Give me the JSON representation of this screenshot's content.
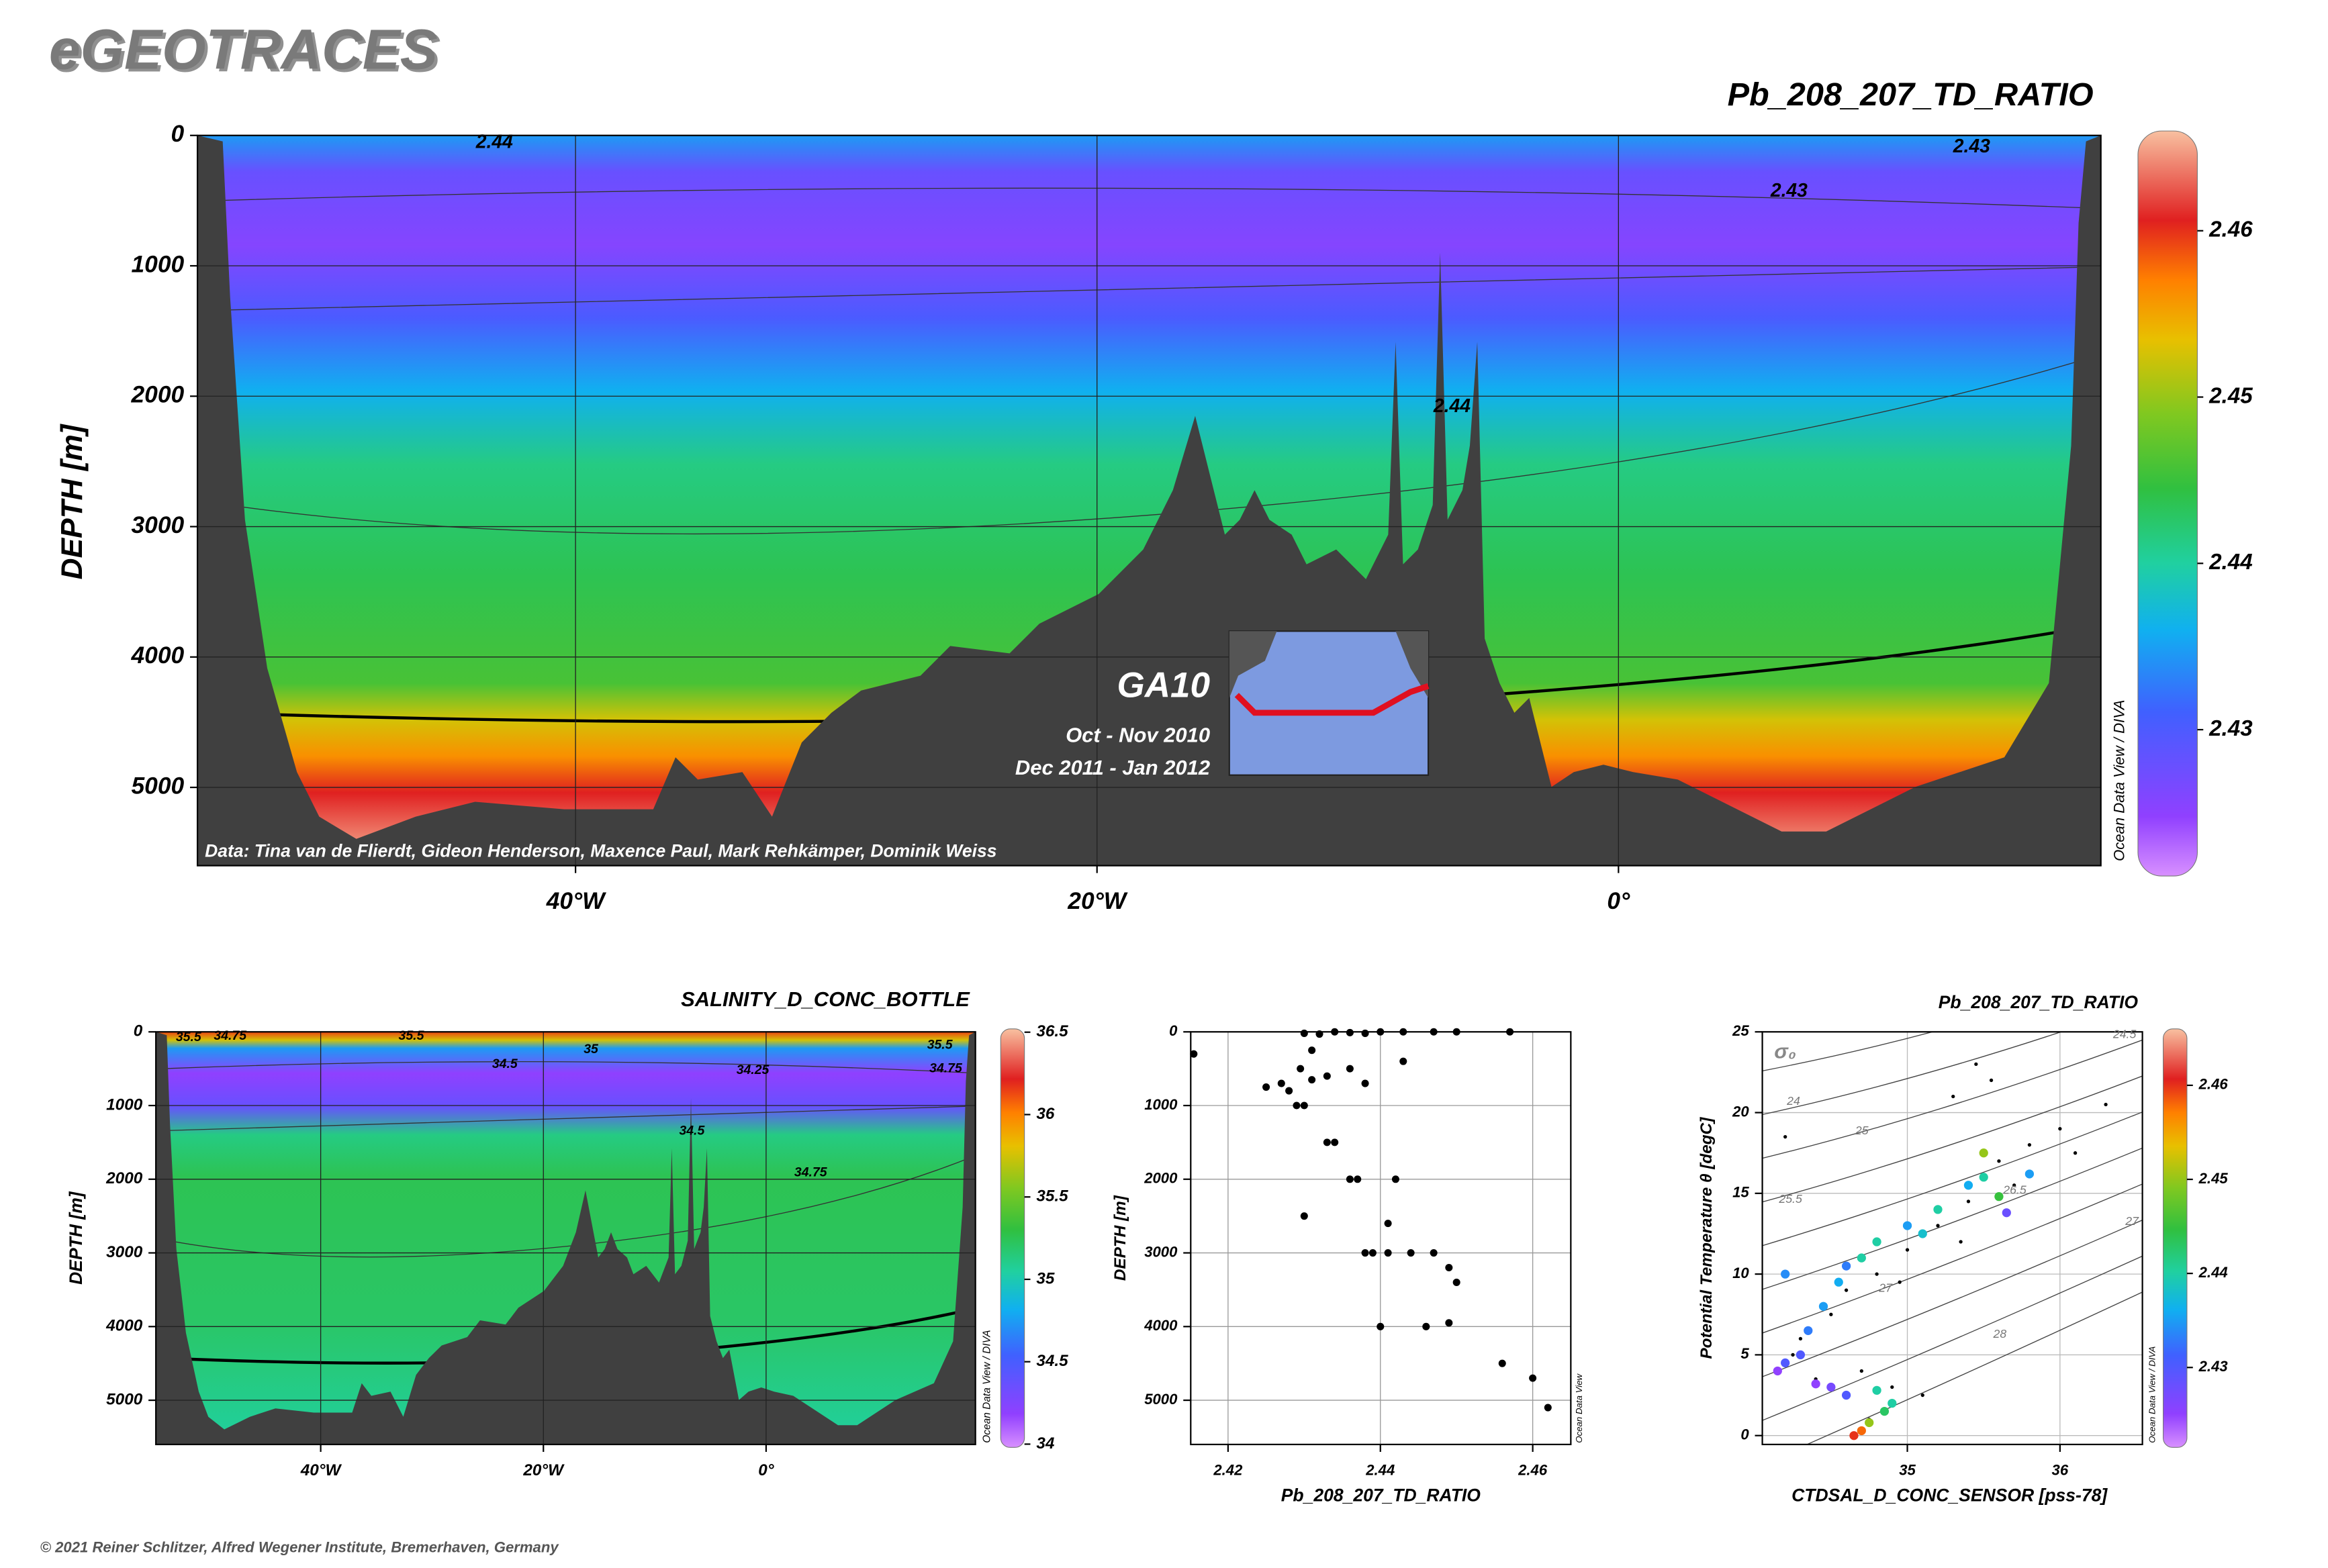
{
  "header": {
    "title": "eGEOTRACES"
  },
  "footer": "© 2021 Reiner Schlitzer, Alfred Wegener Institute, Bremerhaven, Germany",
  "chart_data": [
    {
      "type": "section",
      "title": "Pb_208_207_TD_RATIO",
      "ylabel": "DEPTH [m]",
      "ylim": [
        0,
        5600
      ],
      "yticks": [
        0,
        1000,
        2000,
        3000,
        4000,
        5000
      ],
      "xlim": [
        -54.5,
        18.5
      ],
      "xticks": [
        {
          "value": -40,
          "label": "40°W"
        },
        {
          "value": -20,
          "label": "20°W"
        },
        {
          "value": 0,
          "label": "0°"
        }
      ],
      "colorbar": {
        "lim": [
          2.4212,
          2.466
        ],
        "ticks": [
          2.43,
          2.44,
          2.45,
          2.46
        ]
      },
      "contour_labels": [
        2.44,
        2.43,
        2.44,
        2.43
      ],
      "credit": "Data: Tina van de Flierdt, Gideon Henderson, Maxence Paul, Mark Rehkämper, Dominik Weiss",
      "cruise": "GA10",
      "dates": [
        "Oct - Nov 2010",
        "Dec 2011 - Jan 2012"
      ],
      "software": "Ocean Data View / DIVA"
    },
    {
      "type": "section",
      "title": "SALINITY_D_CONC_BOTTLE",
      "ylabel": "DEPTH [m]",
      "ylim": [
        0,
        5600
      ],
      "yticks": [
        0,
        1000,
        2000,
        3000,
        4000,
        5000
      ],
      "xlim": [
        -54.8,
        18.8
      ],
      "xticks": [
        {
          "value": -40,
          "label": "40°W"
        },
        {
          "value": -20,
          "label": "20°W"
        },
        {
          "value": 0,
          "label": "0°"
        }
      ],
      "colorbar": {
        "lim": [
          33.98,
          36.52
        ],
        "ticks": [
          34,
          34.5,
          35,
          35.5,
          36,
          36.5
        ]
      },
      "contour_labels": [
        35.5,
        34.75,
        35.5,
        35,
        34.5,
        34.25,
        35.5,
        34.75,
        34.5,
        34.75
      ],
      "software": "Ocean Data View / DIVA"
    },
    {
      "type": "profile",
      "xlabel": "Pb_208_207_TD_RATIO",
      "ylabel": "DEPTH [m]",
      "xlim": [
        2.4151,
        2.465
      ],
      "xticks": [
        2.42,
        2.44,
        2.46
      ],
      "ylim": [
        0,
        5600
      ],
      "yticks": [
        0,
        1000,
        2000,
        3000,
        4000,
        5000
      ],
      "x": [
        2.4155,
        2.43,
        2.432,
        2.434,
        2.436,
        2.438,
        2.44,
        2.443,
        2.447,
        2.45,
        2.457,
        2.431,
        2.4295,
        2.431,
        2.433,
        2.428,
        2.427,
        2.425,
        2.429,
        2.43,
        2.436,
        2.438,
        2.443,
        2.433,
        2.434,
        2.436,
        2.437,
        2.442,
        2.441,
        2.43,
        2.438,
        2.439,
        2.441,
        2.444,
        2.447,
        2.449,
        2.45,
        2.44,
        2.446,
        2.449,
        2.456,
        2.46,
        2.462
      ],
      "y": [
        300,
        20,
        30,
        0,
        10,
        20,
        0,
        0,
        0,
        0,
        0,
        250,
        500,
        650,
        600,
        800,
        700,
        750,
        1000,
        1000,
        500,
        700,
        400,
        1500,
        1500,
        2000,
        2000,
        2000,
        2600,
        2500,
        3000,
        3000,
        3000,
        3000,
        3000,
        3200,
        3400,
        4000,
        4000,
        3950,
        4500,
        4700,
        5100
      ],
      "software": "Ocean Data View"
    },
    {
      "type": "ts",
      "title": "Pb_208_207_TD_RATIO",
      "xlabel": "CTDSAL_D_CONC_SENSOR [pss-78]",
      "ylabel": "Potential Temperature θ [degC]",
      "xlim": [
        34.05,
        36.54
      ],
      "xticks": [
        35,
        36
      ],
      "ylim": [
        -0.55,
        25
      ],
      "yticks": [
        0,
        5,
        10,
        15,
        20,
        25
      ],
      "x": [
        34.3,
        34.5,
        34.6,
        34.8,
        35.0,
        35.2,
        35.4,
        35.5,
        35.6,
        35.8,
        36.0,
        36.3,
        35.3,
        35.45,
        34.7,
        34.9,
        35.1,
        34.4,
        34.25,
        34.2,
        35.7,
        36.1,
        34.75,
        34.95,
        35.35,
        35.55
      ],
      "y": [
        6,
        7.5,
        9,
        10,
        11.5,
        13,
        14.5,
        16,
        17,
        18,
        19,
        20.5,
        21,
        23,
        4,
        3,
        2.5,
        3.5,
        5,
        18.5,
        15.5,
        17.5,
        1,
        9.5,
        12,
        22
      ],
      "colored": {
        "x": [
          34.15,
          34.2,
          34.3,
          34.35,
          34.45,
          34.55,
          34.6,
          34.7,
          34.8,
          35.0,
          35.2,
          35.4,
          35.5,
          35.8,
          35.5,
          34.6,
          34.8,
          34.9,
          34.85,
          34.75,
          34.7,
          34.65,
          34.5,
          34.4,
          35.6,
          35.1,
          34.2,
          35.65
        ],
        "y": [
          4,
          4.5,
          5,
          6.5,
          8,
          9.5,
          10.5,
          11,
          12,
          13,
          14,
          15.5,
          16,
          16.2,
          17.5,
          2.5,
          2.8,
          2,
          1.5,
          0.8,
          0.3,
          0,
          3,
          3.2,
          14.8,
          12.5,
          10,
          13.8
        ],
        "values": [
          2.425,
          2.43,
          2.43,
          2.433,
          2.435,
          2.436,
          2.433,
          2.44,
          2.44,
          2.435,
          2.44,
          2.436,
          2.44,
          2.435,
          2.45,
          2.43,
          2.44,
          2.44,
          2.443,
          2.45,
          2.458,
          2.46,
          2.427,
          2.425,
          2.445,
          2.438,
          2.434,
          2.428
        ]
      },
      "colorbar": {
        "lim": [
          2.4215,
          2.466
        ],
        "ticks": [
          2.43,
          2.44,
          2.45,
          2.46
        ]
      },
      "contour_labels": [
        24,
        24.5,
        25,
        25.5,
        26.5,
        27,
        27,
        28
      ],
      "sigma_label": "σ₀",
      "software": "Ocean Data View / DIVA"
    }
  ]
}
